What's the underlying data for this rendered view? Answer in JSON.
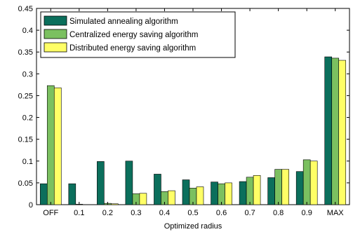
{
  "chart_data": {
    "type": "bar",
    "title": "",
    "xlabel": "Optimized radius",
    "ylabel": "",
    "categories": [
      "OFF",
      "0.1",
      "0.2",
      "0.3",
      "0.4",
      "0.5",
      "0.6",
      "0.7",
      "0.8",
      "0.9",
      "MAX"
    ],
    "y_ticks": [
      "0",
      "0.05",
      "0.1",
      "0.15",
      "0.2",
      "0.25",
      "0.3",
      "0.35",
      "0.4",
      "0.45"
    ],
    "ylim": [
      0,
      0.45
    ],
    "grid": false,
    "legend_position": "top-left",
    "series": [
      {
        "name": "Simulated annealing algorithm",
        "color": "#0b6f5c",
        "values": [
          0.048,
          0.048,
          0.099,
          0.1,
          0.07,
          0.057,
          0.052,
          0.053,
          0.062,
          0.076,
          0.339
        ]
      },
      {
        "name": "Centralized energy saving algorithm",
        "color": "#7bc060",
        "values": [
          0.273,
          0.001,
          0.003,
          0.025,
          0.03,
          0.038,
          0.048,
          0.063,
          0.081,
          0.103,
          0.336
        ]
      },
      {
        "name": "Distributed energy saving algorithm",
        "color": "#ffff66",
        "values": [
          0.268,
          0.0,
          0.002,
          0.026,
          0.032,
          0.041,
          0.05,
          0.067,
          0.081,
          0.1,
          0.331
        ]
      }
    ]
  }
}
